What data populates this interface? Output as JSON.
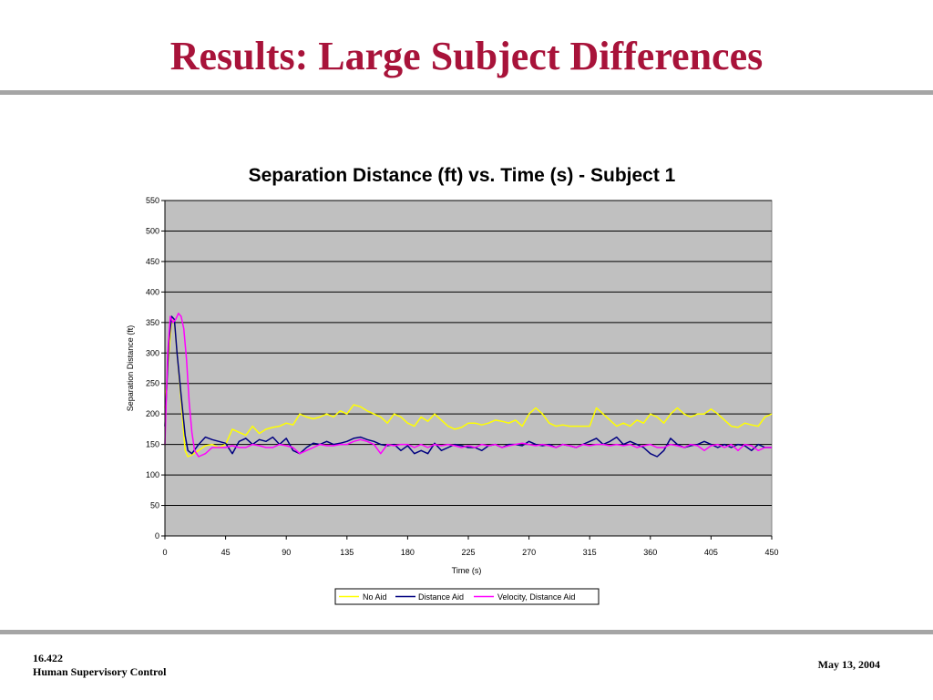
{
  "slide": {
    "title": "Results: Large Subject Differences",
    "footer_course": "16.422",
    "footer_name": "Human Supervisory Control",
    "footer_date": "May 13, 2004"
  },
  "chart_data": {
    "type": "line",
    "title": "Separation Distance (ft) vs. Time (s) - Subject 1",
    "xlabel": "Time (s)",
    "ylabel": "Separation Distance (ft)",
    "xlim": [
      0,
      450
    ],
    "ylim": [
      0,
      550
    ],
    "x_ticks": [
      0,
      45,
      90,
      135,
      180,
      225,
      270,
      315,
      360,
      405,
      450
    ],
    "y_ticks": [
      0,
      50,
      100,
      150,
      200,
      250,
      300,
      350,
      400,
      450,
      500,
      550
    ],
    "grid": "horizontal",
    "legend_position": "bottom",
    "plot_background": "#C0C0C0",
    "series": [
      {
        "name": "No Aid",
        "color": "#FFFF00",
        "x": [
          0,
          3,
          5,
          7,
          9,
          12,
          15,
          17,
          20,
          25,
          30,
          35,
          40,
          45,
          50,
          55,
          60,
          65,
          70,
          75,
          80,
          85,
          90,
          95,
          100,
          105,
          110,
          115,
          120,
          125,
          130,
          135,
          140,
          145,
          150,
          155,
          160,
          165,
          170,
          175,
          180,
          185,
          190,
          195,
          200,
          205,
          210,
          215,
          220,
          225,
          230,
          235,
          240,
          245,
          250,
          255,
          260,
          265,
          270,
          275,
          280,
          285,
          290,
          295,
          300,
          305,
          310,
          315,
          320,
          325,
          330,
          335,
          340,
          345,
          350,
          355,
          360,
          365,
          370,
          375,
          380,
          385,
          390,
          395,
          400,
          405,
          410,
          415,
          420,
          425,
          430,
          435,
          440,
          445,
          450
        ],
        "y": [
          210,
          300,
          355,
          350,
          300,
          220,
          140,
          130,
          133,
          140,
          148,
          150,
          145,
          150,
          175,
          170,
          165,
          180,
          168,
          175,
          178,
          180,
          185,
          182,
          200,
          195,
          192,
          195,
          200,
          195,
          205,
          200,
          215,
          212,
          205,
          200,
          195,
          185,
          200,
          195,
          185,
          180,
          195,
          188,
          200,
          190,
          180,
          175,
          178,
          185,
          185,
          182,
          185,
          190,
          188,
          185,
          190,
          180,
          200,
          210,
          200,
          185,
          180,
          182,
          180,
          180,
          180,
          180,
          210,
          200,
          190,
          180,
          185,
          180,
          190,
          185,
          200,
          195,
          185,
          200,
          210,
          200,
          195,
          200,
          200,
          208,
          200,
          190,
          180,
          178,
          185,
          182,
          180,
          195,
          200
        ]
      },
      {
        "name": "Distance Aid",
        "color": "#000080",
        "x": [
          0,
          3,
          5,
          7,
          9,
          12,
          15,
          17,
          20,
          25,
          30,
          35,
          40,
          45,
          50,
          55,
          60,
          65,
          70,
          75,
          80,
          85,
          90,
          95,
          100,
          105,
          110,
          115,
          120,
          125,
          130,
          135,
          140,
          145,
          150,
          155,
          160,
          165,
          170,
          175,
          180,
          185,
          190,
          195,
          200,
          205,
          210,
          215,
          220,
          225,
          230,
          235,
          240,
          245,
          250,
          255,
          260,
          265,
          270,
          275,
          280,
          285,
          290,
          295,
          300,
          305,
          310,
          315,
          320,
          325,
          330,
          335,
          340,
          345,
          350,
          355,
          360,
          365,
          370,
          375,
          380,
          385,
          390,
          395,
          400,
          405,
          410,
          415,
          420,
          425,
          430,
          435,
          440,
          445,
          450
        ],
        "y": [
          180,
          320,
          360,
          355,
          300,
          230,
          165,
          140,
          135,
          150,
          162,
          158,
          155,
          152,
          135,
          155,
          160,
          150,
          158,
          155,
          162,
          150,
          160,
          140,
          135,
          145,
          152,
          150,
          155,
          150,
          152,
          155,
          160,
          162,
          158,
          155,
          150,
          148,
          150,
          140,
          148,
          135,
          140,
          135,
          152,
          140,
          145,
          150,
          148,
          145,
          145,
          140,
          148,
          150,
          145,
          150,
          150,
          148,
          155,
          150,
          148,
          150,
          145,
          150,
          148,
          145,
          150,
          155,
          160,
          150,
          155,
          162,
          150,
          155,
          150,
          145,
          135,
          130,
          140,
          160,
          150,
          145,
          148,
          150,
          155,
          150,
          145,
          150,
          145,
          150,
          148,
          140,
          150,
          145,
          145
        ]
      },
      {
        "name": "Velocity, Distance Aid",
        "color": "#FF00FF",
        "x": [
          0,
          2,
          4,
          6,
          8,
          10,
          12,
          14,
          16,
          18,
          20,
          22,
          25,
          30,
          35,
          40,
          45,
          50,
          55,
          60,
          65,
          70,
          75,
          80,
          85,
          90,
          95,
          100,
          105,
          110,
          115,
          120,
          125,
          130,
          135,
          140,
          145,
          150,
          155,
          160,
          165,
          170,
          175,
          180,
          185,
          190,
          195,
          200,
          205,
          210,
          215,
          220,
          225,
          230,
          235,
          240,
          245,
          250,
          255,
          260,
          265,
          270,
          275,
          280,
          285,
          290,
          295,
          300,
          305,
          310,
          315,
          320,
          325,
          330,
          335,
          340,
          345,
          350,
          355,
          360,
          365,
          370,
          375,
          380,
          385,
          390,
          395,
          400,
          405,
          410,
          415,
          420,
          425,
          430,
          435,
          440,
          445,
          450
        ],
        "y": [
          150,
          300,
          360,
          350,
          355,
          365,
          360,
          340,
          290,
          220,
          170,
          140,
          130,
          135,
          145,
          145,
          145,
          148,
          145,
          145,
          150,
          148,
          145,
          145,
          150,
          148,
          145,
          135,
          140,
          145,
          150,
          148,
          148,
          150,
          150,
          155,
          158,
          155,
          150,
          135,
          150,
          148,
          150,
          150,
          145,
          150,
          145,
          150,
          148,
          150,
          148,
          145,
          148,
          145,
          150,
          148,
          150,
          145,
          148,
          150,
          152,
          150,
          148,
          150,
          148,
          145,
          150,
          148,
          145,
          150,
          148,
          150,
          150,
          148,
          150,
          148,
          150,
          145,
          148,
          150,
          145,
          145,
          150,
          148,
          145,
          150,
          148,
          140,
          148,
          150,
          145,
          150,
          140,
          150,
          148,
          140,
          145,
          145
        ]
      }
    ]
  }
}
